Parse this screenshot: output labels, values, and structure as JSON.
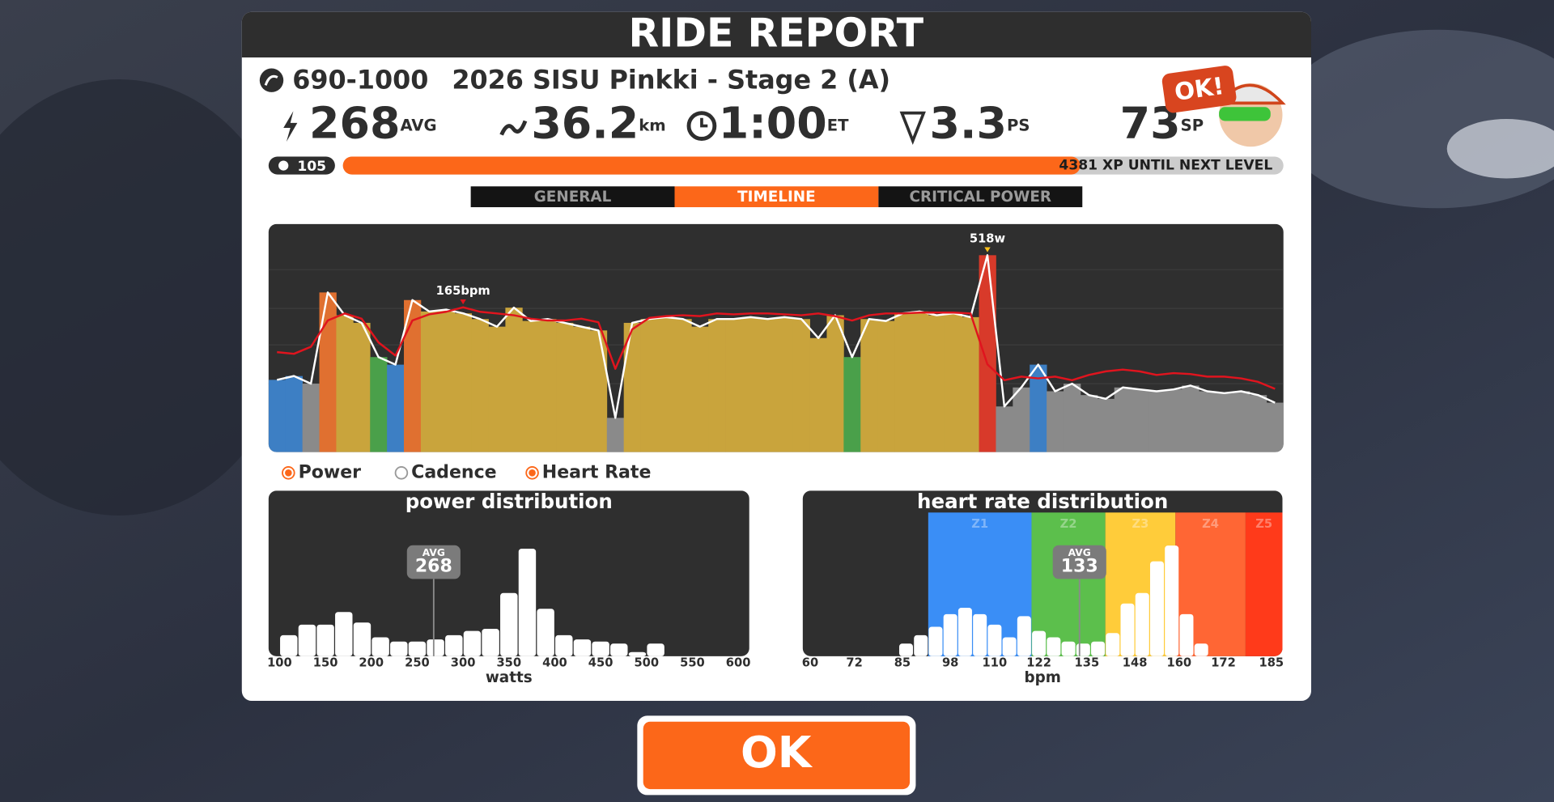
{
  "title": "RIDE REPORT",
  "event": {
    "route_id": "690-1000",
    "name": "2026 SISU Pinkki - Stage 2 (A)"
  },
  "stats": [
    {
      "value": 268,
      "unit": "AVG"
    },
    {
      "value": 36.2,
      "unit": "km"
    },
    {
      "value": "1:00",
      "unit": "ET"
    },
    {
      "value": 3.3,
      "unit": "PS"
    },
    {
      "value": 73,
      "unit": "SP"
    }
  ],
  "avatar_bubble": "OK!",
  "level": 105,
  "xp_text": "4381 XP UNTIL NEXT LEVEL",
  "tabs": [
    {
      "label": "GENERAL",
      "active": false
    },
    {
      "label": "TIMELINE",
      "active": true
    },
    {
      "label": "CRITICAL POWER",
      "active": false
    }
  ],
  "legend": [
    {
      "name": "Power",
      "selected": true
    },
    {
      "name": "Cadence",
      "selected": false
    },
    {
      "name": "Heart Rate",
      "selected": true
    }
  ],
  "ok_button": "OK",
  "chart_data": [
    {
      "type": "line",
      "ylim": [
        0,
        600
      ],
      "y2lim": [
        0,
        260
      ],
      "zones": [
        {
          "upto": 190,
          "color": "#8a8a8a"
        },
        {
          "upto": 240,
          "color": "#3d7fc4"
        },
        {
          "upto": 300,
          "color": "#4aa04a"
        },
        {
          "upto": 400,
          "color": "#c9a43c"
        },
        {
          "upto": 460,
          "color": "#e07030"
        },
        {
          "color": "#d83a2a"
        }
      ],
      "series": [
        {
          "color": "#ffffff",
          "values": [
            190,
            200,
            180,
            420,
            360,
            340,
            250,
            230,
            400,
            370,
            375,
            365,
            350,
            330,
            380,
            345,
            350,
            340,
            330,
            320,
            90,
            340,
            350,
            355,
            350,
            330,
            350,
            350,
            355,
            350,
            355,
            350,
            300,
            360,
            250,
            350,
            345,
            365,
            370,
            360,
            365,
            355,
            518,
            120,
            170,
            230,
            160,
            180,
            150,
            140,
            170,
            165,
            160,
            165,
            175,
            160,
            155,
            160,
            150,
            130
          ]
        },
        {
          "color": "#e0141e",
          "axis": "y2",
          "values": [
            114,
            112,
            120,
            150,
            158,
            152,
            125,
            110,
            150,
            157,
            160,
            165,
            160,
            158,
            156,
            152,
            150,
            150,
            152,
            148,
            95,
            140,
            153,
            155,
            156,
            155,
            158,
            157,
            158,
            158,
            157,
            156,
            158,
            155,
            150,
            156,
            158,
            158,
            159,
            159,
            159,
            158,
            100,
            82,
            86,
            84,
            86,
            82,
            88,
            92,
            94,
            92,
            88,
            90,
            89,
            86,
            86,
            84,
            80,
            72
          ]
        }
      ],
      "annotations": [
        {
          "text": "165bpm",
          "series": 1,
          "index": 11
        },
        {
          "text": "518w",
          "series": 0,
          "index": 42
        }
      ]
    },
    {
      "type": "histogram",
      "title": "power distribution",
      "x_label": "watts",
      "xlim": [
        88,
        612
      ],
      "xticks": [
        100,
        150,
        200,
        250,
        300,
        350,
        400,
        450,
        500,
        550,
        600
      ],
      "ylim": [
        0,
        110
      ],
      "color": "#ffffff",
      "bins": [
        100,
        120,
        140,
        160,
        180,
        200,
        220,
        240,
        260,
        280,
        300,
        320,
        340,
        360,
        380,
        400,
        420,
        440,
        460,
        480,
        500,
        520
      ],
      "values": [
        20,
        30,
        30,
        42,
        32,
        18,
        14,
        14,
        16,
        20,
        24,
        26,
        60,
        102,
        45,
        20,
        16,
        14,
        12,
        4,
        12
      ],
      "avg": {
        "label": "AVG",
        "value": 268
      }
    },
    {
      "type": "histogram",
      "title": "heart rate distribution",
      "x_label": "bpm",
      "xlim": [
        58,
        188
      ],
      "xticks": [
        60,
        72,
        85,
        98,
        110,
        122,
        135,
        148,
        160,
        172,
        185
      ],
      "ylim": [
        0,
        110
      ],
      "color": "#ffffff",
      "zones": [
        {
          "label": "Z1",
          "from": 92,
          "to": 120,
          "color": "#3a8ef6"
        },
        {
          "label": "Z2",
          "from": 120,
          "to": 140,
          "color": "#5cbf4c"
        },
        {
          "label": "Z3",
          "from": 140,
          "to": 159,
          "color": "#ffcc3a"
        },
        {
          "label": "Z4",
          "from": 159,
          "to": 178,
          "color": "#ff6634"
        },
        {
          "label": "Z5",
          "from": 178,
          "to": 188,
          "color": "#ff3a1a"
        }
      ],
      "bins": [
        84,
        88,
        92,
        96,
        100,
        104,
        108,
        112,
        116,
        120,
        124,
        128,
        132,
        136,
        140,
        144,
        148,
        152,
        156,
        160,
        164,
        168
      ],
      "values": [
        12,
        20,
        28,
        40,
        46,
        40,
        30,
        18,
        38,
        24,
        18,
        14,
        12,
        14,
        22,
        50,
        60,
        90,
        105,
        40,
        12
      ],
      "avg": {
        "label": "AVG",
        "value": 133
      }
    }
  ]
}
